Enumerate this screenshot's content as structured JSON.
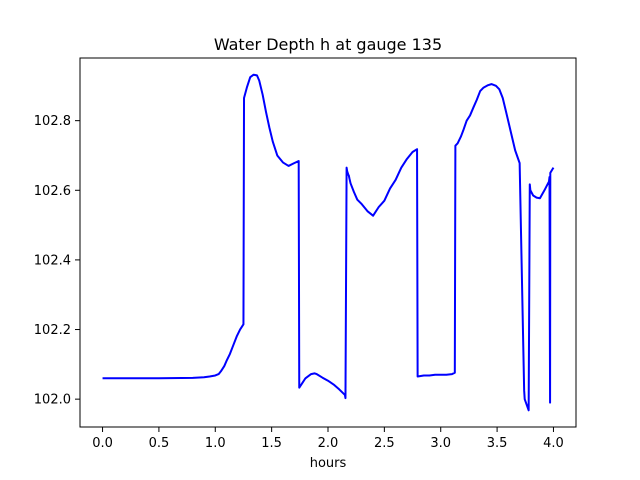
{
  "chart_data": {
    "type": "line",
    "title": "Water Depth h at gauge 135",
    "xlabel": "hours",
    "ylabel": "",
    "xlim": [
      -0.2,
      4.2
    ],
    "ylim": [
      101.92,
      102.98
    ],
    "xticks": [
      0.0,
      0.5,
      1.0,
      1.5,
      2.0,
      2.5,
      3.0,
      3.5,
      4.0
    ],
    "xtick_labels": [
      "0.0",
      "0.5",
      "1.0",
      "1.5",
      "2.0",
      "2.5",
      "3.0",
      "3.5",
      "4.0"
    ],
    "yticks": [
      102.0,
      102.2,
      102.4,
      102.6,
      102.8
    ],
    "ytick_labels": [
      "102.0",
      "102.2",
      "102.4",
      "102.6",
      "102.8"
    ],
    "grid": false,
    "series": [
      {
        "color": "#0000ff",
        "x": [
          0.0,
          0.5,
          0.8,
          0.9,
          0.95,
          1.0,
          1.03,
          1.05,
          1.08,
          1.1,
          1.13,
          1.16,
          1.19,
          1.22,
          1.25,
          1.255,
          1.28,
          1.31,
          1.34,
          1.37,
          1.39,
          1.42,
          1.45,
          1.48,
          1.51,
          1.55,
          1.6,
          1.65,
          1.7,
          1.74,
          1.745,
          1.8,
          1.85,
          1.88,
          1.9,
          1.95,
          2.0,
          2.05,
          2.1,
          2.15,
          2.155,
          2.165,
          2.17,
          2.18,
          2.185,
          2.19,
          2.2,
          2.23,
          2.26,
          2.3,
          2.35,
          2.4,
          2.45,
          2.5,
          2.55,
          2.6,
          2.65,
          2.7,
          2.75,
          2.79,
          2.795,
          2.85,
          2.9,
          2.95,
          3.0,
          3.05,
          3.1,
          3.125,
          3.13,
          3.15,
          3.18,
          3.2,
          3.23,
          3.26,
          3.29,
          3.32,
          3.35,
          3.38,
          3.42,
          3.45,
          3.49,
          3.52,
          3.55,
          3.58,
          3.62,
          3.66,
          3.7,
          3.74,
          3.745,
          3.78,
          3.79,
          3.795,
          3.82,
          3.85,
          3.88,
          3.92,
          3.96,
          3.965,
          3.97,
          3.972,
          4.0
        ],
        "y": [
          102.06,
          102.06,
          102.061,
          102.063,
          102.065,
          102.068,
          102.072,
          102.08,
          102.095,
          102.11,
          102.13,
          102.155,
          102.18,
          102.2,
          102.215,
          102.865,
          102.895,
          102.925,
          102.932,
          102.93,
          102.915,
          102.875,
          102.825,
          102.78,
          102.74,
          102.7,
          102.68,
          102.67,
          102.678,
          102.684,
          102.033,
          102.06,
          102.072,
          102.074,
          102.072,
          102.062,
          102.053,
          102.042,
          102.028,
          102.012,
          102.003,
          102.665,
          102.655,
          102.645,
          102.642,
          102.634,
          102.62,
          102.595,
          102.573,
          102.56,
          102.54,
          102.527,
          102.552,
          102.57,
          102.605,
          102.63,
          102.665,
          102.69,
          102.71,
          102.718,
          102.065,
          102.068,
          102.068,
          102.07,
          102.07,
          102.07,
          102.072,
          102.076,
          102.728,
          102.735,
          102.755,
          102.772,
          102.8,
          102.815,
          102.838,
          102.86,
          102.885,
          102.895,
          102.902,
          102.905,
          102.9,
          102.89,
          102.865,
          102.825,
          102.77,
          102.715,
          102.678,
          102.025,
          102.0,
          101.968,
          102.617,
          102.6,
          102.585,
          102.579,
          102.577,
          102.6,
          102.625,
          102.638,
          101.99,
          102.65,
          102.665
        ]
      }
    ]
  }
}
